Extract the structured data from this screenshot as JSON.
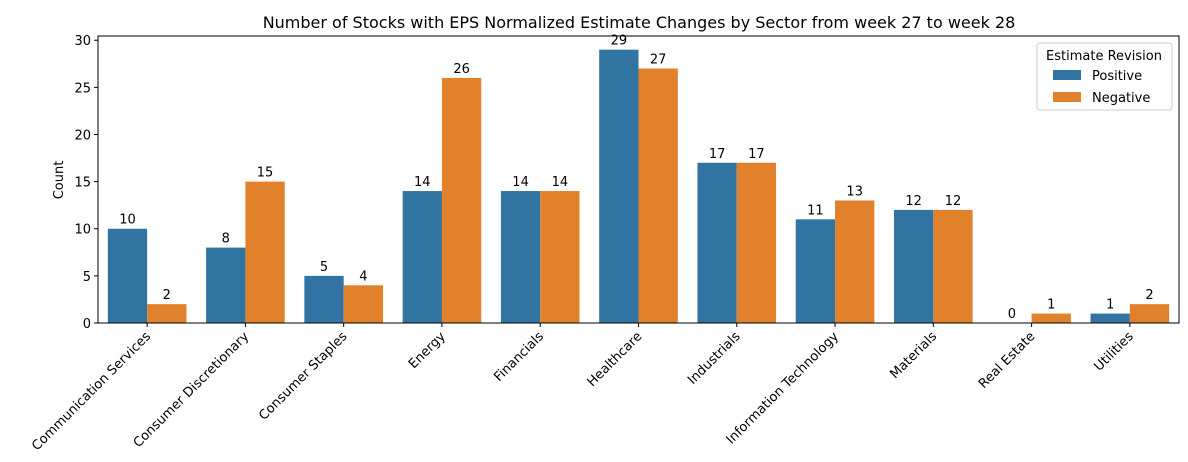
{
  "chart_data": {
    "type": "bar",
    "title": "Number of Stocks with EPS Normalized Estimate Changes by Sector from week 27 to week 28",
    "xlabel": "",
    "ylabel": "Count",
    "ylim": [
      0,
      30.45
    ],
    "yticks": [
      0,
      5,
      10,
      15,
      20,
      25,
      30
    ],
    "grid": false,
    "categories": [
      "Communication Services",
      "Consumer Discretionary",
      "Consumer Staples",
      "Energy",
      "Financials",
      "Healthcare",
      "Industrials",
      "Information Technology",
      "Materials",
      "Real Estate",
      "Utilities"
    ],
    "series": [
      {
        "name": "Positive",
        "color": "#3274a1",
        "values": [
          10,
          8,
          5,
          14,
          14,
          29,
          17,
          11,
          12,
          0,
          1
        ]
      },
      {
        "name": "Negative",
        "color": "#e1812c",
        "values": [
          2,
          15,
          4,
          26,
          14,
          27,
          17,
          13,
          12,
          1,
          2
        ]
      }
    ],
    "legend": {
      "title": "Estimate Revision",
      "placement": "upper-right"
    },
    "data_labels": true
  }
}
